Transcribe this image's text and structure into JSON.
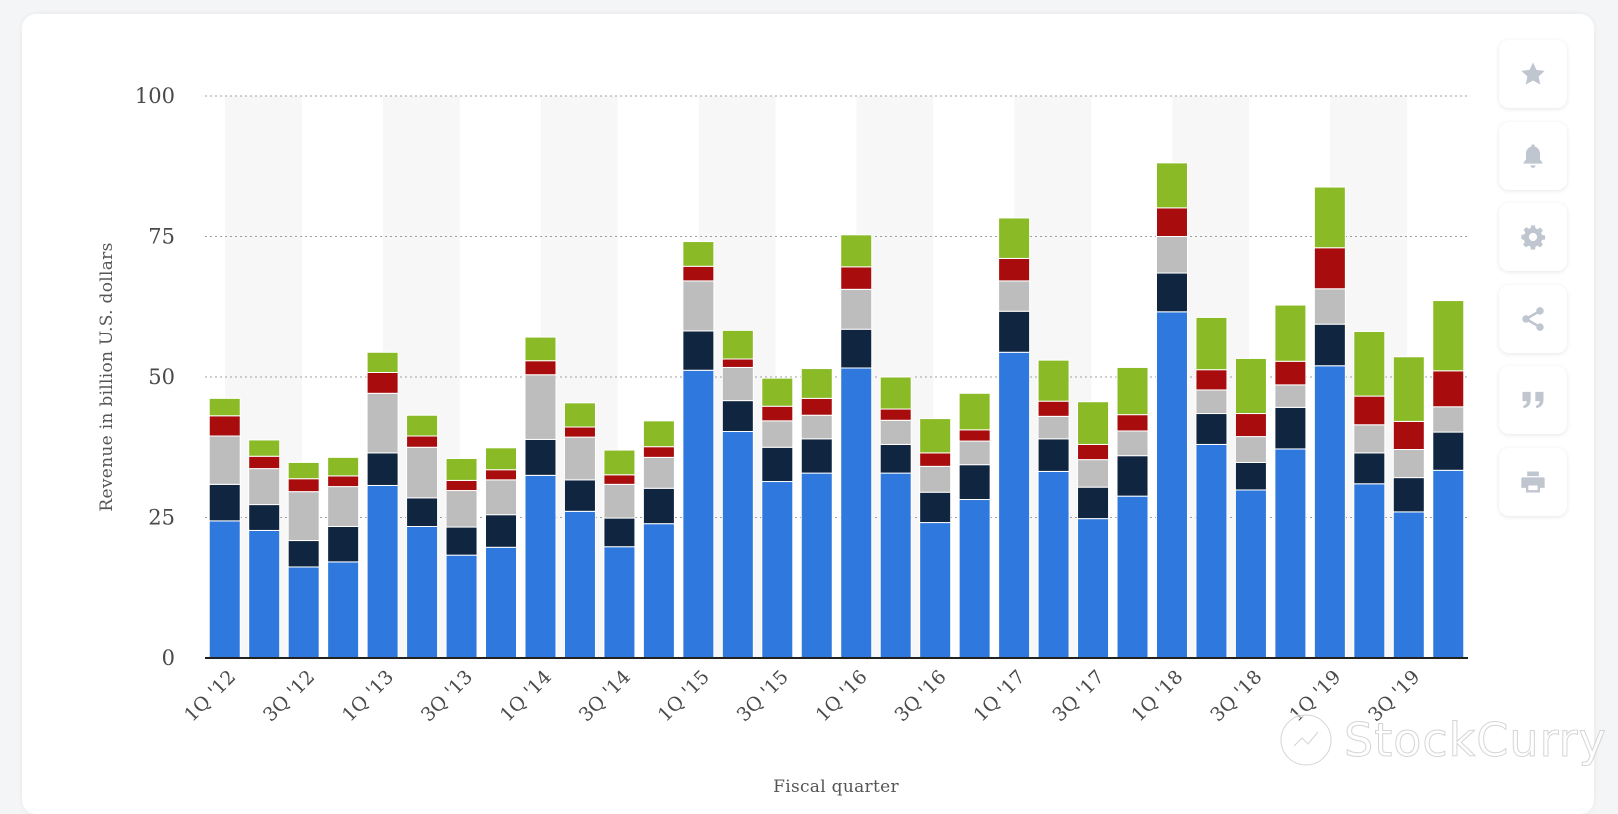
{
  "chart_data": {
    "type": "bar",
    "stacked": true,
    "categories": [
      "1Q '12",
      "2Q '12",
      "3Q '12",
      "4Q '12",
      "1Q '13",
      "2Q '13",
      "3Q '13",
      "4Q '13",
      "1Q '14",
      "2Q '14",
      "3Q '14",
      "4Q '14",
      "1Q '15",
      "2Q '15",
      "3Q '15",
      "4Q '15",
      "1Q '16",
      "2Q '16",
      "3Q '16",
      "4Q '16",
      "1Q '17",
      "2Q '17",
      "3Q '17",
      "4Q '17",
      "1Q '18",
      "2Q '18",
      "3Q '18",
      "4Q '18",
      "1Q '19",
      "2Q '19",
      "3Q '19",
      "4Q '19"
    ],
    "x_tick_labels": [
      "1Q '12",
      "",
      "3Q '12",
      "",
      "1Q '13",
      "",
      "3Q '13",
      "",
      "1Q '14",
      "",
      "3Q '14",
      "",
      "1Q '15",
      "",
      "3Q '15",
      "",
      "1Q '16",
      "",
      "3Q '16",
      "",
      "1Q '17",
      "",
      "3Q '17",
      "",
      "1Q '18",
      "",
      "3Q '18",
      "",
      "1Q '19",
      "",
      "3Q '19",
      ""
    ],
    "series": [
      {
        "color": "#2f78dd",
        "values": [
          24.4,
          22.7,
          16.2,
          17.1,
          30.7,
          23.4,
          18.3,
          19.7,
          32.5,
          26.1,
          19.8,
          23.9,
          51.2,
          40.3,
          31.4,
          32.9,
          51.6,
          32.9,
          24.1,
          28.2,
          54.4,
          33.2,
          24.8,
          28.8,
          61.6,
          38.0,
          29.9,
          37.2,
          52.0,
          31.0,
          26.0,
          33.4
        ]
      },
      {
        "color": "#10253f",
        "values": [
          6.5,
          4.6,
          4.7,
          6.3,
          5.8,
          5.1,
          5.0,
          5.8,
          6.4,
          5.6,
          5.1,
          6.3,
          7.0,
          5.5,
          6.1,
          6.1,
          6.9,
          5.1,
          5.4,
          6.2,
          7.3,
          5.8,
          5.6,
          7.2,
          6.9,
          5.5,
          4.9,
          7.4,
          7.4,
          5.5,
          6.1,
          6.8
        ]
      },
      {
        "color": "#bdbdbd",
        "values": [
          8.6,
          6.4,
          8.7,
          7.1,
          10.6,
          9.0,
          6.5,
          6.2,
          11.5,
          7.6,
          6.0,
          5.5,
          8.9,
          5.9,
          4.7,
          4.2,
          7.1,
          4.3,
          4.6,
          4.2,
          5.4,
          4.0,
          4.9,
          4.4,
          6.5,
          4.2,
          4.6,
          4.0,
          6.3,
          5.0,
          5.0,
          4.5
        ]
      },
      {
        "color": "#a80c0c",
        "values": [
          3.6,
          2.2,
          2.3,
          1.9,
          3.7,
          2.0,
          1.8,
          1.8,
          2.5,
          1.8,
          1.7,
          1.9,
          2.6,
          1.5,
          2.6,
          3.0,
          4.0,
          2.0,
          2.4,
          2.0,
          4.0,
          2.7,
          2.7,
          2.9,
          5.1,
          3.6,
          4.1,
          4.2,
          7.3,
          5.1,
          5.0,
          6.4
        ]
      },
      {
        "color": "#8aba25",
        "values": [
          3.1,
          2.9,
          2.9,
          3.3,
          3.6,
          3.7,
          3.9,
          3.9,
          4.2,
          4.3,
          4.4,
          4.6,
          4.4,
          5.1,
          5.0,
          5.3,
          5.7,
          5.7,
          6.1,
          6.5,
          7.2,
          7.3,
          7.6,
          8.4,
          8.0,
          9.3,
          9.8,
          10.0,
          10.8,
          11.5,
          11.5,
          12.5
        ]
      }
    ],
    "ylabel": "Revenue in billion U.S. dollars",
    "xlabel": "Fiscal quarter",
    "ylim": [
      0,
      100
    ],
    "yticks": [
      0,
      25,
      50,
      75,
      100
    ],
    "grid": "horizontal dotted",
    "legend": "none"
  },
  "toolbar": {
    "buttons": [
      "star-icon",
      "bell-icon",
      "gear-icon",
      "share-icon",
      "quote-icon",
      "print-icon"
    ]
  },
  "watermark": {
    "text": "StockCurry"
  }
}
